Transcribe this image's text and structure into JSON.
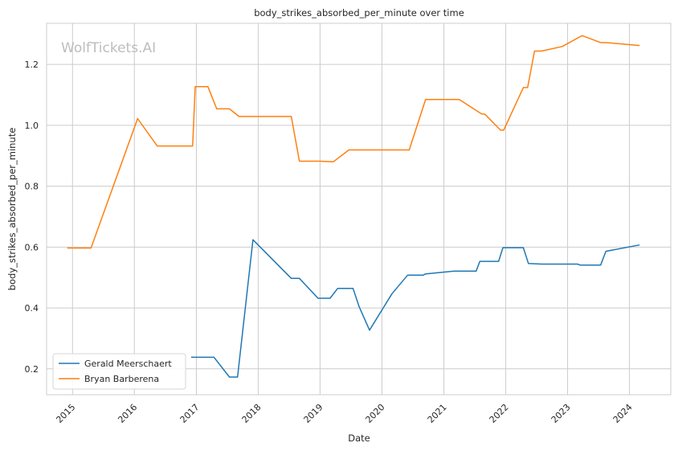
{
  "chart_data": {
    "type": "line",
    "title": "body_strikes_absorbed_per_minute over time",
    "xlabel": "Date",
    "ylabel": "body_strikes_absorbed_per_minute",
    "watermark": "WolfTickets.AI",
    "xlim": [
      "2014-08-01",
      "2024-09-01"
    ],
    "ylim": [
      0.115,
      1.335
    ],
    "x_ticks": [
      "2015",
      "2016",
      "2017",
      "2018",
      "2019",
      "2020",
      "2021",
      "2022",
      "2023",
      "2024"
    ],
    "y_ticks": [
      "0.2",
      "0.4",
      "0.6",
      "0.8",
      "1.0",
      "1.2"
    ],
    "grid": true,
    "legend_position": "lower-left",
    "series": [
      {
        "name": "Gerald Meerschaert",
        "color": "#1f77b4",
        "points": [
          [
            "2016-12-01",
            0.238
          ],
          [
            "2017-04-15",
            0.238
          ],
          [
            "2017-07-15",
            0.173
          ],
          [
            "2017-09-01",
            0.173
          ],
          [
            "2017-12-01",
            0.624
          ],
          [
            "2018-07-15",
            0.497
          ],
          [
            "2018-09-01",
            0.497
          ],
          [
            "2018-12-20",
            0.432
          ],
          [
            "2019-03-01",
            0.432
          ],
          [
            "2019-04-15",
            0.464
          ],
          [
            "2019-07-15",
            0.464
          ],
          [
            "2019-08-20",
            0.404
          ],
          [
            "2019-10-20",
            0.327
          ],
          [
            "2020-03-01",
            0.447
          ],
          [
            "2020-06-01",
            0.508
          ],
          [
            "2020-09-01",
            0.508
          ],
          [
            "2020-09-15",
            0.512
          ],
          [
            "2021-03-01",
            0.521
          ],
          [
            "2021-07-10",
            0.521
          ],
          [
            "2021-08-01",
            0.553
          ],
          [
            "2021-11-20",
            0.553
          ],
          [
            "2021-12-15",
            0.598
          ],
          [
            "2022-04-15",
            0.598
          ],
          [
            "2022-05-15",
            0.546
          ],
          [
            "2022-08-01",
            0.544
          ],
          [
            "2023-03-01",
            0.544
          ],
          [
            "2023-03-15",
            0.541
          ],
          [
            "2023-07-15",
            0.541
          ],
          [
            "2023-08-15",
            0.586
          ],
          [
            "2024-03-01",
            0.607
          ]
        ]
      },
      {
        "name": "Bryan Barberena",
        "color": "#ff7f0e",
        "points": [
          [
            "2014-12-01",
            0.597
          ],
          [
            "2015-04-20",
            0.597
          ],
          [
            "2016-01-20",
            1.022
          ],
          [
            "2016-05-15",
            0.932
          ],
          [
            "2016-12-10",
            0.932
          ],
          [
            "2016-12-25",
            1.127
          ],
          [
            "2017-03-10",
            1.127
          ],
          [
            "2017-05-01",
            1.054
          ],
          [
            "2017-07-15",
            1.054
          ],
          [
            "2017-09-10",
            1.029
          ],
          [
            "2018-07-15",
            1.029
          ],
          [
            "2018-09-01",
            0.882
          ],
          [
            "2019-01-01",
            0.882
          ],
          [
            "2019-03-20",
            0.88
          ],
          [
            "2019-06-20",
            0.919
          ],
          [
            "2020-06-10",
            0.919
          ],
          [
            "2020-09-15",
            1.085
          ],
          [
            "2021-04-01",
            1.085
          ],
          [
            "2021-08-10",
            1.038
          ],
          [
            "2021-09-01",
            1.036
          ],
          [
            "2021-12-01",
            0.984
          ],
          [
            "2021-12-20",
            0.984
          ],
          [
            "2022-04-15",
            1.124
          ],
          [
            "2022-05-10",
            1.124
          ],
          [
            "2022-06-20",
            1.244
          ],
          [
            "2022-08-01",
            1.244
          ],
          [
            "2022-12-01",
            1.259
          ],
          [
            "2023-03-25",
            1.294
          ],
          [
            "2023-04-05",
            1.293
          ],
          [
            "2023-07-15",
            1.272
          ],
          [
            "2023-09-01",
            1.271
          ],
          [
            "2024-03-01",
            1.262
          ]
        ]
      }
    ]
  }
}
